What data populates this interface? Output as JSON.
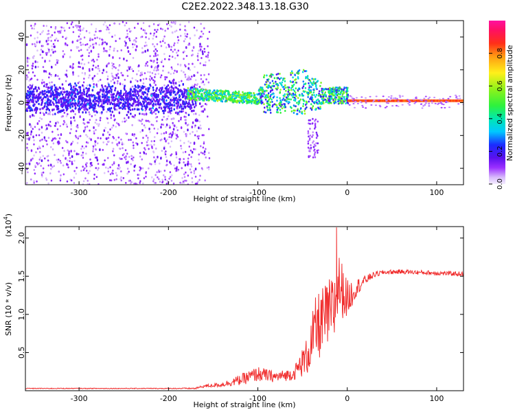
{
  "title": "C2E2.2022.348.13.18.G30",
  "chart_data": [
    {
      "type": "heatmap",
      "name": "spectrogram",
      "xlabel": "Height of straight line (km)",
      "ylabel": "Frequency (Hz)",
      "xlim": [
        -360,
        130
      ],
      "ylim": [
        -50,
        50
      ],
      "xticks": [
        -300,
        -200,
        -100,
        0,
        100
      ],
      "yticks": [
        -40,
        -20,
        0,
        20,
        40
      ],
      "description_of_signal": [
        {
          "x_range": [
            -360,
            -160
          ],
          "freq_band": [
            -50,
            50
          ],
          "amplitude": "low, scattered"
        },
        {
          "x_range": [
            -360,
            -180
          ],
          "freq_band": [
            -8,
            8
          ],
          "amplitude": "~0.15-0.3"
        },
        {
          "x_range": [
            -180,
            -100
          ],
          "freq_band": [
            -4,
            6
          ],
          "amplitude": "~0.5-0.7"
        },
        {
          "x_range": [
            -100,
            0
          ],
          "freq_band": [
            -5,
            12
          ],
          "amplitude": "~0.4-0.7"
        },
        {
          "x_range": [
            0,
            130
          ],
          "freq_band": [
            -1,
            1
          ],
          "amplitude": "~0.9-1.0"
        }
      ],
      "colorbar": {
        "label": "Normalized spectral amplitude",
        "range": [
          0.0,
          1.0
        ],
        "ticks": [
          0.0,
          0.2,
          0.4,
          0.6,
          0.8
        ],
        "tick_labels": [
          "0.0",
          "0.2",
          "0.4",
          "0.6",
          "0.8"
        ]
      }
    },
    {
      "type": "line",
      "name": "snr",
      "xlabel": "Height of straight line (km)",
      "ylabel": "SNR (10 * v/v)",
      "scale_label": "(x10",
      "scale_exponent": "4",
      "scale_close": ")",
      "xlim": [
        -360,
        130
      ],
      "ylim": [
        0,
        2.15
      ],
      "xticks": [
        -300,
        -200,
        -100,
        0,
        100
      ],
      "yticks": [
        0.5,
        1.0,
        1.5,
        2.0
      ],
      "ytick_labels": [
        "0.5",
        "1.0",
        "1.5",
        "2.0"
      ],
      "color": "#f02c2c",
      "series": [
        {
          "name": "SNR",
          "x": [
            -360,
            -300,
            -250,
            -200,
            -170,
            -160,
            -140,
            -120,
            -100,
            -80,
            -60,
            -45,
            -35,
            -25,
            -15,
            -10,
            0,
            10,
            20,
            30,
            40,
            60,
            80,
            100,
            130
          ],
          "values": [
            0.03,
            0.03,
            0.03,
            0.03,
            0.03,
            0.06,
            0.08,
            0.14,
            0.22,
            0.18,
            0.22,
            0.45,
            0.8,
            0.95,
            1.05,
            1.4,
            1.2,
            1.35,
            1.45,
            1.52,
            1.55,
            1.56,
            1.55,
            1.54,
            1.53
          ],
          "noise_amplitude": [
            0.005,
            0.005,
            0.005,
            0.005,
            0.01,
            0.02,
            0.03,
            0.07,
            0.1,
            0.07,
            0.08,
            0.25,
            0.45,
            0.45,
            0.5,
            0.45,
            0.25,
            0.12,
            0.06,
            0.04,
            0.03,
            0.03,
            0.03,
            0.03,
            0.03
          ],
          "peak": {
            "x": -12,
            "y": 2.14
          }
        }
      ]
    }
  ]
}
